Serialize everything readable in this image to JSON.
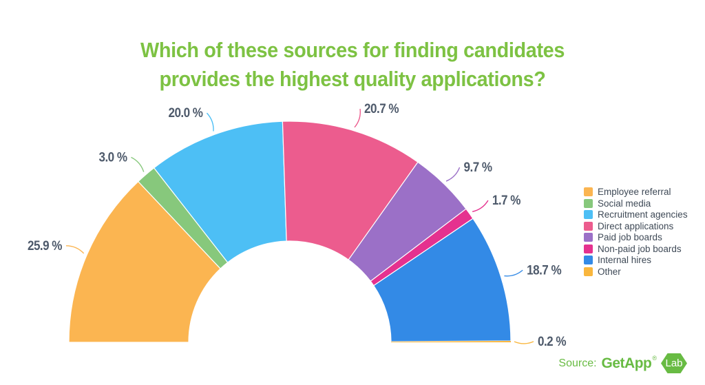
{
  "title": {
    "line1": "Which of these sources for finding candidates",
    "line2": "provides the highest quality applications?",
    "color": "#7dc243"
  },
  "chart_data": {
    "type": "pie",
    "variant": "half-donut",
    "title": "Which of these sources for finding candidates provides the highest quality applications?",
    "unit": "%",
    "legend_position": "right",
    "start_angle_deg": 180,
    "end_angle_deg": 0,
    "label_color": "#4e5a6b",
    "series": [
      {
        "name": "Employee referral",
        "value": 25.9,
        "label": "25.9 %",
        "color": "#fbb551"
      },
      {
        "name": "Social media",
        "value": 3.0,
        "label": "3.0 %",
        "color": "#87c87c"
      },
      {
        "name": "Recruitment agencies",
        "value": 20.0,
        "label": "20.0 %",
        "color": "#4dbff5"
      },
      {
        "name": "Direct applications",
        "value": 20.7,
        "label": "20.7 %",
        "color": "#ec5c8e"
      },
      {
        "name": "Paid job boards",
        "value": 9.7,
        "label": "9.7 %",
        "color": "#9b70c7"
      },
      {
        "name": "Non-paid job boards",
        "value": 1.7,
        "label": "1.7 %",
        "color": "#e5318f"
      },
      {
        "name": "Internal hires",
        "value": 18.7,
        "label": "18.7 %",
        "color": "#338ae6"
      },
      {
        "name": "Other",
        "value": 0.2,
        "label": "0.2 %",
        "color": "#f9b63d"
      }
    ]
  },
  "legend": {
    "text_color": "#3e4956"
  },
  "source": {
    "prefix": "Source:",
    "brand": "GetApp",
    "registered": "®",
    "badge": "Lab",
    "color": "#68bb43"
  }
}
